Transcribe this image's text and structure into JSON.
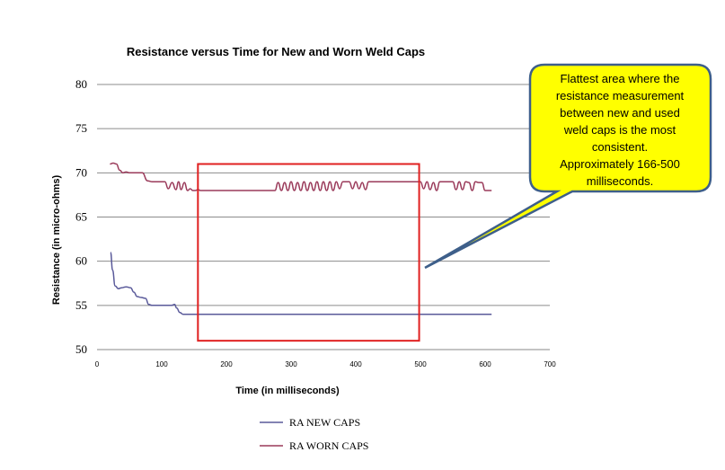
{
  "chart_data": {
    "type": "line",
    "title": "Resistance versus Time for New and Worn Weld Caps",
    "xlabel": "Time (in milliseconds)",
    "ylabel": "Resistance (in micro-ohms)",
    "xlim": [
      0,
      700
    ],
    "ylim": [
      50,
      80
    ],
    "xticks": [
      0,
      100,
      200,
      300,
      400,
      500,
      600,
      700
    ],
    "yticks": [
      50,
      55,
      60,
      65,
      70,
      75,
      80
    ],
    "grid": "horizontal",
    "legend_position": "bottom",
    "series": [
      {
        "name": "RA NEW CAPS",
        "color": "#5a5a9a",
        "x": [
          21,
          24,
          28,
          33,
          38,
          45,
          52,
          57,
          62,
          68,
          75,
          80,
          85,
          95,
          105,
          115,
          120,
          123,
          128,
          133,
          140,
          150,
          200,
          300,
          400,
          500,
          550,
          610
        ],
        "y": [
          61,
          59,
          57.2,
          56.9,
          57.0,
          57.1,
          57.0,
          56.5,
          56.0,
          55.9,
          55.8,
          55.1,
          55.0,
          55.0,
          55.0,
          55.0,
          55.1,
          54.7,
          54.2,
          54.0,
          54.0,
          54.0,
          54.0,
          54.0,
          54.0,
          54.0,
          54.0,
          54.0
        ]
      },
      {
        "name": "RA WORN CAPS",
        "color": "#9a3a5a",
        "x": [
          20,
          25,
          30,
          35,
          40,
          45,
          50,
          60,
          70,
          78,
          85,
          95,
          105,
          110,
          116,
          122,
          126,
          130,
          135,
          140,
          144,
          148,
          152,
          156,
          160,
          166,
          180,
          200,
          220,
          240,
          260,
          275,
          280,
          285,
          290,
          295,
          300,
          305,
          310,
          315,
          320,
          325,
          330,
          335,
          340,
          345,
          350,
          355,
          360,
          365,
          370,
          375,
          380,
          385,
          390,
          395,
          400,
          405,
          410,
          415,
          420,
          430,
          450,
          470,
          490,
          500,
          505,
          510,
          515,
          520,
          525,
          530,
          540,
          550,
          555,
          560,
          565,
          570,
          575,
          580,
          585,
          590,
          595,
          600,
          605,
          610
        ],
        "y": [
          71,
          71.1,
          71,
          70.3,
          70,
          70.1,
          70,
          70,
          70,
          69.1,
          69,
          69,
          69,
          68.2,
          68.9,
          68.1,
          69,
          68.1,
          68.9,
          68,
          68.2,
          68.0,
          68,
          68.1,
          68,
          68,
          68,
          68,
          68,
          68,
          68,
          68,
          68.9,
          68,
          68.9,
          68,
          69,
          68,
          68.9,
          68,
          69,
          68,
          68.9,
          68,
          69,
          68,
          69,
          68,
          69,
          68,
          69,
          68.2,
          69,
          69,
          69,
          68.2,
          69,
          68.2,
          68.9,
          68.1,
          69,
          69,
          69,
          69,
          69,
          69,
          68.2,
          69,
          68.1,
          68.9,
          68.0,
          69,
          69,
          69,
          68.1,
          69,
          68.1,
          69,
          68.9,
          68.0,
          69,
          68.9,
          68.9,
          68.0,
          68,
          68
        ]
      }
    ],
    "annotations": [
      {
        "type": "rectangle",
        "color": "#e02020",
        "x_range": [
          156,
          498
        ],
        "y_range": [
          51,
          71
        ]
      },
      {
        "type": "callout",
        "text_lines": [
          "Flattest area where the",
          "resistance measurement",
          "between new and used",
          "weld caps is the most",
          "consistent.",
          "Approximately 166-500",
          "milliseconds."
        ],
        "fill": "#ffff00",
        "border": "#3e5f8a"
      }
    ]
  }
}
